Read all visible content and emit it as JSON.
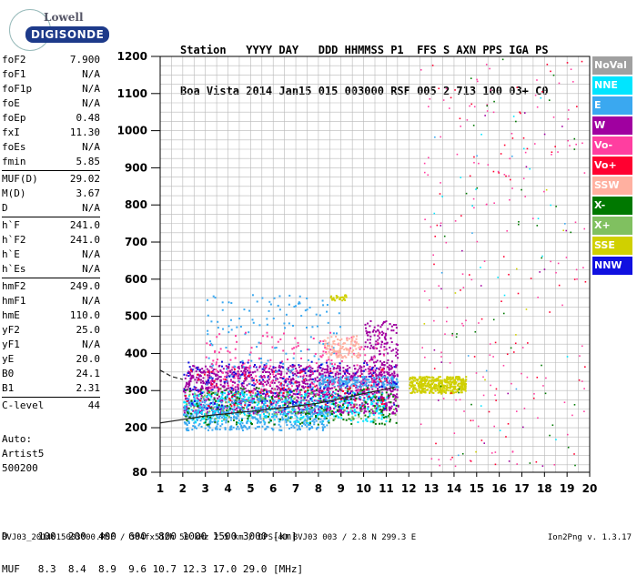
{
  "logo": {
    "top": "Lowell",
    "bottom": "DIGISONDE"
  },
  "header": {
    "line1": "Station   YYYY DAY   DDD HHMMSS P1  FFS S AXN PPS IGA PS",
    "line2": "Boa Vista 2014 Jan15 015 003000 RSF 005 2 713 100 03+ C0"
  },
  "params": [
    [
      [
        "foF2",
        "7.900"
      ],
      [
        "foF1",
        "N/A"
      ],
      [
        "foF1p",
        "N/A"
      ],
      [
        "foE",
        "N/A"
      ],
      [
        "foEp",
        "0.48"
      ],
      [
        "fxI",
        "11.30"
      ],
      [
        "foEs",
        "N/A"
      ],
      [
        "fmin",
        "5.85"
      ]
    ],
    [
      [
        "MUF(D)",
        "29.02"
      ],
      [
        "M(D)",
        "3.67"
      ],
      [
        "D",
        "N/A"
      ]
    ],
    [
      [
        "h`F",
        "241.0"
      ],
      [
        "h`F2",
        "241.0"
      ],
      [
        "h`E",
        "N/A"
      ],
      [
        "h`Es",
        "N/A"
      ]
    ],
    [
      [
        "hmF2",
        "249.0"
      ],
      [
        "hmF1",
        "N/A"
      ],
      [
        "hmE",
        "110.0"
      ],
      [
        "yF2",
        "25.0"
      ],
      [
        "yF1",
        "N/A"
      ],
      [
        "yE",
        "20.0"
      ],
      [
        "B0",
        "24.1"
      ],
      [
        "B1",
        "2.31"
      ]
    ],
    [
      [
        "C-level",
        "44"
      ]
    ]
  ],
  "auto": {
    "label": "Auto:",
    "artist": "Artist5",
    "code": "500200"
  },
  "dmuf": {
    "line1": "D     100  200  400  600  800 1000 1500 3000 [km]",
    "line2": "MUF   8.3  8.4  8.9  9.6 10.7 12.3 17.0 29.0 [MHz]"
  },
  "bottom_line": "BVJ03_2014015003000.RSF / 384fx512h 50 kHz 2.5 km / DPS-4D BVJ03 003 / 2.8 N 299.3 E",
  "version": "Ion2Png v. 1.3.17",
  "legend": [
    {
      "label": "NoVal",
      "color": "#a0a0a0"
    },
    {
      "label": "NNE",
      "color": "#00e5ff"
    },
    {
      "label": "E",
      "color": "#3aa8f0"
    },
    {
      "label": "W",
      "color": "#a000a0"
    },
    {
      "label": "Vo-",
      "color": "#ff3ea0"
    },
    {
      "label": "Vo+",
      "color": "#ff0030"
    },
    {
      "label": "SSW",
      "color": "#ffb0a0"
    },
    {
      "label": "X-",
      "color": "#007800"
    },
    {
      "label": "X+",
      "color": "#80c060"
    },
    {
      "label": "SSE",
      "color": "#d0d000"
    },
    {
      "label": "NNW",
      "color": "#1010e0"
    }
  ],
  "chart_data": {
    "type": "scatter",
    "title": "",
    "xlabel": "",
    "ylabel": "",
    "xlim": [
      1,
      20
    ],
    "ylim": [
      80,
      1200
    ],
    "x_ticks": [
      1,
      2,
      3,
      4,
      5,
      6,
      7,
      8,
      9,
      10,
      11,
      12,
      13,
      14,
      15,
      16,
      17,
      18,
      19,
      20
    ],
    "y_ticks": [
      80,
      200,
      300,
      400,
      500,
      600,
      700,
      800,
      900,
      1000,
      1100,
      1200
    ],
    "clusters": [
      {
        "series": "W",
        "xr": [
          2.0,
          11.5
        ],
        "yr": [
          240,
          370
        ],
        "n": 1400
      },
      {
        "series": "W",
        "xr": [
          10.0,
          11.5
        ],
        "yr": [
          370,
          490
        ],
        "n": 120
      },
      {
        "series": "NNE",
        "xr": [
          2.0,
          11.0
        ],
        "yr": [
          215,
          300
        ],
        "n": 500
      },
      {
        "series": "E",
        "xr": [
          2.0,
          8.5
        ],
        "yr": [
          195,
          280
        ],
        "n": 500
      },
      {
        "series": "E",
        "xr": [
          3.0,
          9.0
        ],
        "yr": [
          300,
          560
        ],
        "n": 160
      },
      {
        "series": "E",
        "xr": [
          8.0,
          11.5
        ],
        "yr": [
          310,
          340
        ],
        "n": 200
      },
      {
        "series": "X-",
        "xr": [
          2.0,
          11.5
        ],
        "yr": [
          210,
          310
        ],
        "n": 220
      },
      {
        "series": "X+",
        "xr": [
          2.0,
          11.5
        ],
        "yr": [
          220,
          300
        ],
        "n": 120
      },
      {
        "series": "Vo-",
        "xr": [
          3.0,
          11.0
        ],
        "yr": [
          290,
          460
        ],
        "n": 200
      },
      {
        "series": "SSW",
        "xr": [
          8.2,
          9.8
        ],
        "yr": [
          390,
          450
        ],
        "n": 110
      },
      {
        "series": "SSE",
        "xr": [
          12.0,
          14.5
        ],
        "yr": [
          295,
          340
        ],
        "n": 400
      },
      {
        "series": "SSE",
        "xr": [
          8.5,
          9.2
        ],
        "yr": [
          545,
          560
        ],
        "n": 25
      },
      {
        "series": "NNW",
        "xr": [
          2.0,
          11.5
        ],
        "yr": [
          250,
          380
        ],
        "n": 160
      },
      {
        "series": "Vo+",
        "xr": [
          2.0,
          11.0
        ],
        "yr": [
          260,
          360
        ],
        "n": 80
      }
    ],
    "scatter_sparse": [
      {
        "series": "Vo-",
        "xr": [
          12.5,
          19.8
        ],
        "yr": [
          85,
          1195
        ],
        "n": 150
      },
      {
        "series": "Vo+",
        "xr": [
          13.0,
          20.0
        ],
        "yr": [
          85,
          1195
        ],
        "n": 70
      },
      {
        "series": "X-",
        "xr": [
          13.0,
          19.5
        ],
        "yr": [
          85,
          1195
        ],
        "n": 40
      },
      {
        "series": "NNE",
        "xr": [
          13.0,
          19.0
        ],
        "yr": [
          85,
          1100
        ],
        "n": 20
      },
      {
        "series": "W",
        "xr": [
          13.0,
          19.0
        ],
        "yr": [
          85,
          1100
        ],
        "n": 20
      },
      {
        "series": "E",
        "xr": [
          13.0,
          19.0
        ],
        "yr": [
          85,
          1100
        ],
        "n": 10
      },
      {
        "series": "SSE",
        "xr": [
          12.5,
          19.5
        ],
        "yr": [
          85,
          1100
        ],
        "n": 10
      }
    ],
    "profile_curve": [
      [
        1.0,
        213
      ],
      [
        2.0,
        222
      ],
      [
        3.0,
        232
      ],
      [
        4.0,
        238
      ],
      [
        5.0,
        244
      ],
      [
        6.0,
        251
      ],
      [
        7.0,
        258
      ],
      [
        7.6,
        263
      ],
      [
        8.0,
        266
      ],
      [
        8.5,
        272
      ],
      [
        9.0,
        279
      ],
      [
        9.5,
        285
      ],
      [
        10.0,
        292
      ],
      [
        10.5,
        298
      ],
      [
        11.0,
        304
      ],
      [
        11.4,
        310
      ]
    ],
    "dashed_curve": [
      [
        1.0,
        355
      ],
      [
        1.5,
        338
      ],
      [
        2.0,
        330
      ]
    ]
  }
}
